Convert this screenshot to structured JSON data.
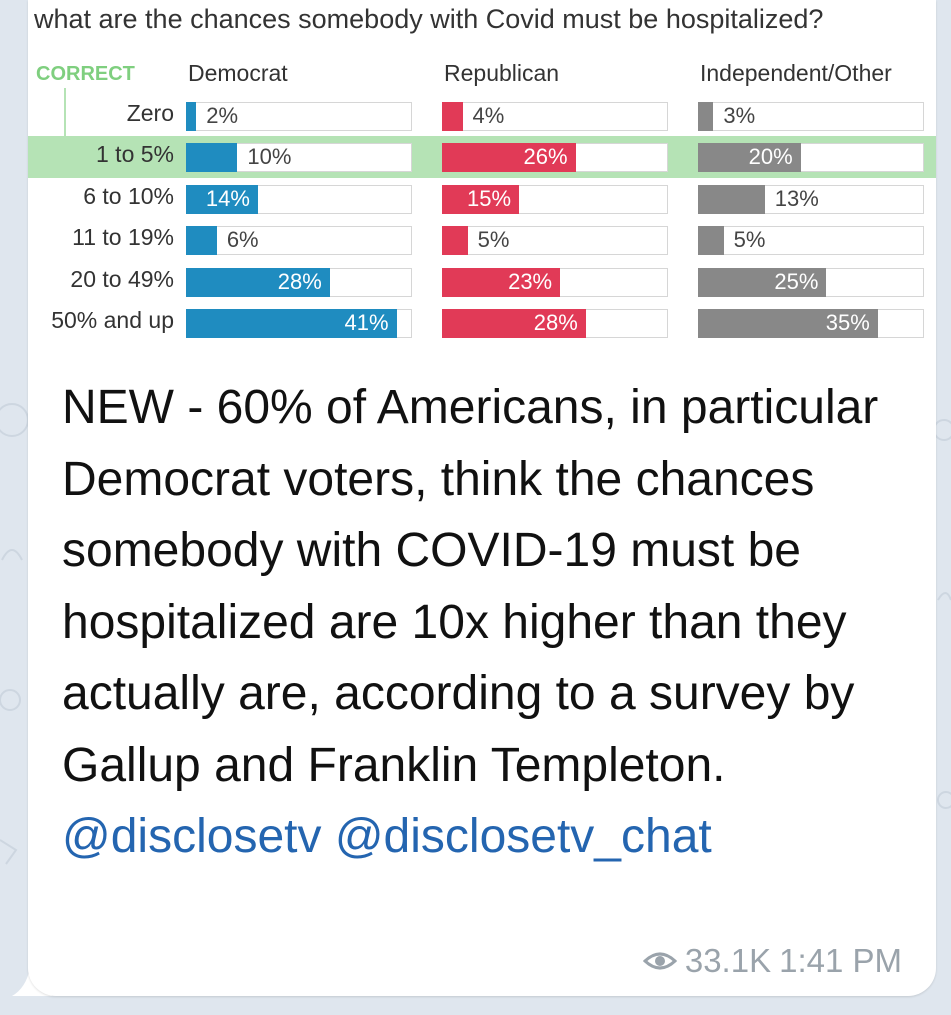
{
  "chart_data": {
    "type": "bar",
    "title": "what are the chances somebody with Covid must be hospitalized?",
    "correct_label": "CORRECT",
    "categories": [
      "Zero",
      "1 to 5%",
      "6 to 10%",
      "11 to 19%",
      "20 to 49%",
      "50% and up"
    ],
    "correct_category": "1 to 5%",
    "xlim": [
      0,
      50
    ],
    "series": [
      {
        "name": "Democrat",
        "values": [
          2,
          10,
          14,
          6,
          28,
          41
        ],
        "labels": [
          "2%",
          "10%",
          "14%",
          "6%",
          "28%",
          "41%"
        ],
        "color": "#1f8cc0"
      },
      {
        "name": "Republican",
        "values": [
          4,
          26,
          15,
          5,
          23,
          28
        ],
        "labels": [
          "4%",
          "26%",
          "15%",
          "5%",
          "23%",
          "28%"
        ],
        "color": "#e13a57"
      },
      {
        "name": "Independent/Other",
        "values": [
          3,
          20,
          13,
          5,
          25,
          35
        ],
        "labels": [
          "3%",
          "20%",
          "13%",
          "5%",
          "25%",
          "35%"
        ],
        "color": "#888888"
      }
    ]
  },
  "message": {
    "text": "NEW - 60% of Americans, in particular Democrat voters, think the chances somebody with COVID-19 must be hospitalized are 10x higher than they actually are, according to a survey by Gallup and Franklin Templeton.",
    "link1": "@disclosetv",
    "link2": "@disclosetv_chat",
    "views": "33.1K",
    "time": "1:41 PM",
    "views_icon": "eye-icon"
  },
  "colors": {
    "background": "#dfe6ee",
    "bubble": "#ffffff",
    "link": "#2465b0",
    "meta": "#9aa3ab",
    "correct_band": "#b5e3b5"
  }
}
